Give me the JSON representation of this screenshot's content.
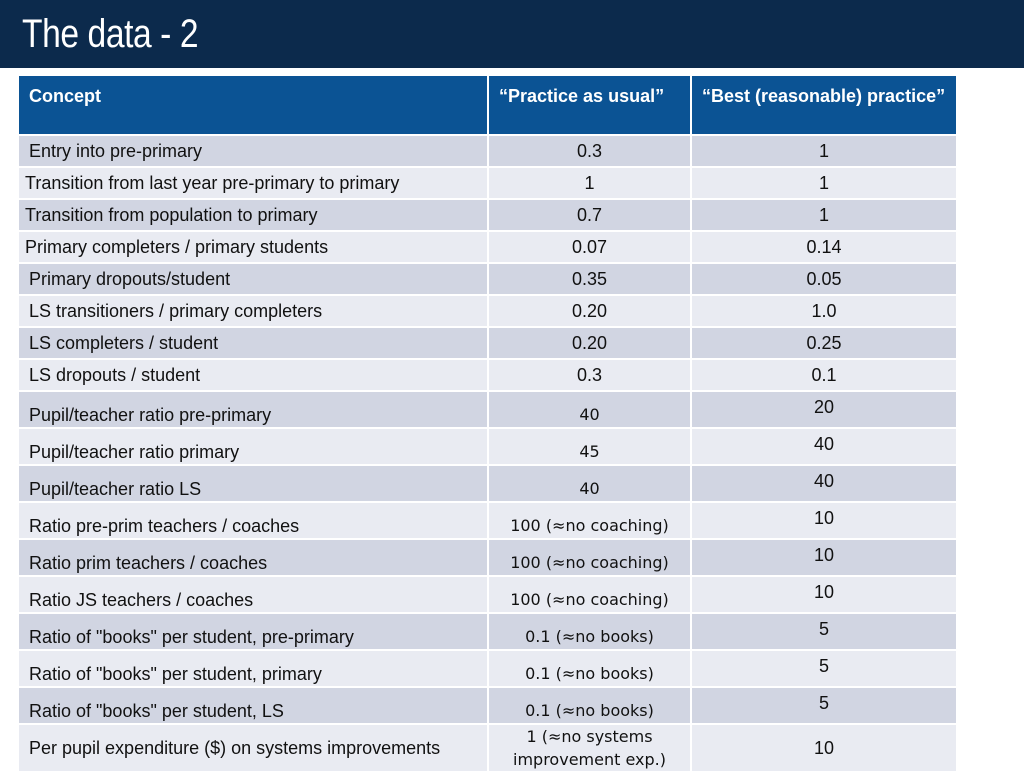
{
  "title": "The data - 2",
  "table": {
    "headers": [
      "Concept",
      "“Practice as usual”",
      "“Best (reasonable) practice”"
    ],
    "rows": [
      {
        "concept": "Entry into pre-primary",
        "usual": "0.3",
        "best": "1"
      },
      {
        "concept": "Transition from last year pre-primary to primary",
        "usual": "1",
        "best": "1"
      },
      {
        "concept": "Transition from population to primary",
        "usual": "0.7",
        "best": "1"
      },
      {
        "concept": "Primary completers / primary students",
        "usual": "0.07",
        "best": "0.14"
      },
      {
        "concept": "Primary dropouts/student",
        "usual": "0.35",
        "best": "0.05"
      },
      {
        "concept": "LS transitioners / primary completers",
        "usual": "0.20",
        "best": "1.0"
      },
      {
        "concept": "LS completers / student",
        "usual": "0.20",
        "best": "0.25"
      },
      {
        "concept": "LS dropouts / student",
        "usual": "0.3",
        "best": "0.1"
      },
      {
        "concept": "Pupil/teacher ratio pre-primary",
        "usual": "40",
        "best": "20"
      },
      {
        "concept": "Pupil/teacher ratio primary",
        "usual": "45",
        "best": "40"
      },
      {
        "concept": "Pupil/teacher ratio LS",
        "usual": "40",
        "best": "40"
      },
      {
        "concept": "Ratio pre-prim teachers / coaches",
        "usual": "100 (≈no coaching)",
        "best": "10"
      },
      {
        "concept": "Ratio prim teachers / coaches",
        "usual": "100 (≈no coaching)",
        "best": "10"
      },
      {
        "concept": "Ratio JS teachers / coaches",
        "usual": "100 (≈no coaching)",
        "best": "10"
      },
      {
        "concept": "Ratio of \"books\" per student, pre-primary",
        "usual": "0.1 (≈no books)",
        "best": "5"
      },
      {
        "concept": "Ratio of \"books\" per student, primary",
        "usual": "0.1  (≈no books)",
        "best": "5"
      },
      {
        "concept": "Ratio of \"books\" per student, LS",
        "usual": "0.1  (≈no books)",
        "best": "5"
      },
      {
        "concept": "Per pupil expenditure ($) on systems improvements",
        "usual": "1  (≈no systems improvement exp.)",
        "best": "10"
      }
    ]
  }
}
